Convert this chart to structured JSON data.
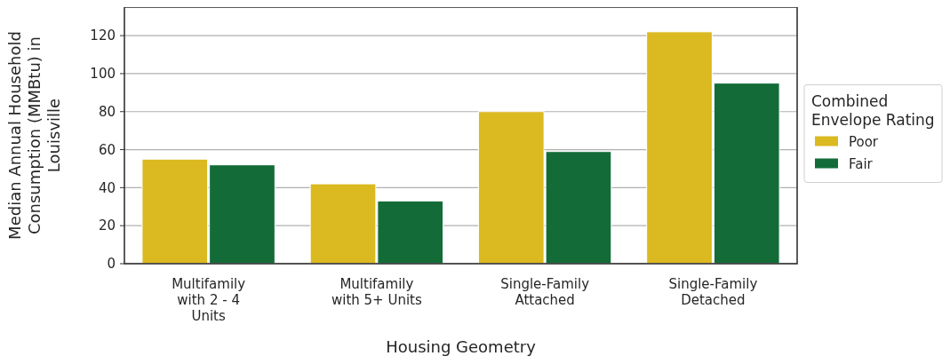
{
  "chart_data": {
    "type": "bar",
    "xlabel": "Housing Geometry",
    "ylabel": "Median Annual Household Consumption (MMBtu) in Louisville",
    "legend_title": "Combined Envelope Rating",
    "categories": [
      "Multifamily with 2 - 4 Units",
      "Multifamily with 5+ Units",
      "Single-Family Attached",
      "Single-Family Detached"
    ],
    "series": [
      {
        "name": "Poor",
        "color": "#dbb920",
        "values": [
          55,
          42,
          80,
          122
        ]
      },
      {
        "name": "Fair",
        "color": "#136c38",
        "values": [
          52,
          33,
          59,
          95
        ]
      }
    ],
    "ylim": [
      0,
      135
    ],
    "yticks": [
      0,
      20,
      40,
      60,
      80,
      100,
      120
    ],
    "grid": "y",
    "legend": "right"
  }
}
